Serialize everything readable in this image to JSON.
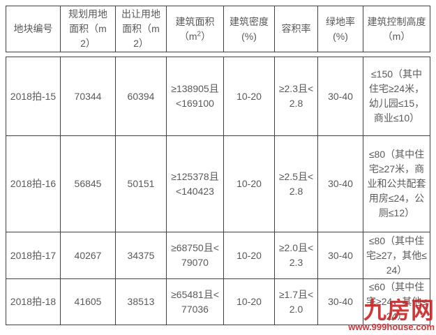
{
  "colors": {
    "page_background": "#ffffff",
    "table_text": "#595959",
    "table_border": "#404040",
    "watermark_red": "#cc2222"
  },
  "table": {
    "header_columns": [
      {
        "lines": [
          "地块编号"
        ]
      },
      {
        "lines": [
          "规划用地",
          "面积（m",
          "2）"
        ]
      },
      {
        "lines": [
          "出让用地",
          "面积（m",
          "2）"
        ]
      },
      {
        "lines": [
          "建筑面积"
        ],
        "unit_pre": "（m",
        "unit_sup": "2",
        "unit_post": "）"
      },
      {
        "lines": [
          "建筑密度",
          "(%)"
        ]
      },
      {
        "lines": [
          "容积率"
        ]
      },
      {
        "lines": [
          "绿地率",
          "(%)"
        ]
      },
      {
        "lines": [
          "建筑控制高度",
          "（m）"
        ]
      }
    ],
    "rows": [
      {
        "parcel_id": "2018拍-15",
        "planned_area": "70344",
        "transferred_area": "60394",
        "building_area": "≥138905且<169100",
        "building_density": "10-20",
        "plot_ratio": "≥2.3且<2.8",
        "green_rate": "30-40",
        "height_limit": "≤150（其中住宅≥24米，幼儿园≤15，商业≤10）"
      },
      {
        "parcel_id": "2018拍-16",
        "planned_area": "56845",
        "transferred_area": "50151",
        "building_area": "≥125378且<140423",
        "building_density": "10-20",
        "plot_ratio": "≥2.5且<2.8",
        "green_rate": "30-40",
        "height_limit": "≤80（其中住宅≥27米，商业和公共配套用房≤24，公厕≤12）"
      },
      {
        "parcel_id": "2018拍-17",
        "planned_area": "40267",
        "transferred_area": "34375",
        "building_area": "≥68750且<79070",
        "building_density": "10-20",
        "plot_ratio": "≥2.0且<2.3",
        "green_rate": "30-40",
        "height_limit": "≤80（其中住宅≥27，其他≤24）"
      },
      {
        "parcel_id": "2018拍-18",
        "planned_area": "41605",
        "transferred_area": "38513",
        "building_area": "≥65481且<77036",
        "building_density": "10-20",
        "plot_ratio": "≥1.7且<2.0",
        "green_rate": "30-40",
        "height_limit": "≤60（其中住宅≥24，其他≤24）"
      }
    ]
  },
  "watermark": {
    "logo_text": "九房网",
    "url": "www.999house.com"
  }
}
